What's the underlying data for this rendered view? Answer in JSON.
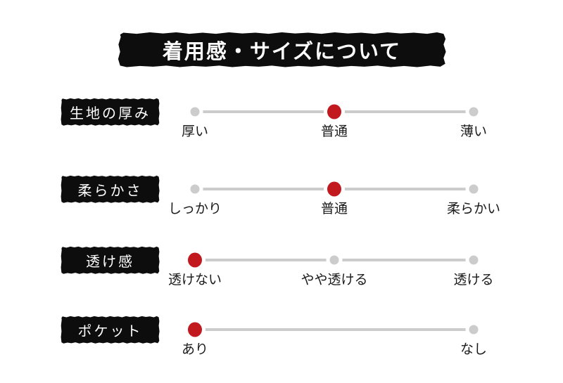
{
  "title": "着用感・サイズについて",
  "colors": {
    "accent_red": "#c2191e",
    "track_gray": "#cccccc",
    "panel_black": "#0d0d0d",
    "option_text": "#1a1a1a",
    "background": "#ffffff"
  },
  "rows": [
    {
      "label": "生地の厚み",
      "options": [
        {
          "label": "厚い",
          "state": "unselected"
        },
        {
          "label": "普通",
          "state": "selected"
        },
        {
          "label": "薄い",
          "state": "unselected"
        }
      ]
    },
    {
      "label": "柔らかさ",
      "options": [
        {
          "label": "しっかり",
          "state": "unselected"
        },
        {
          "label": "普通",
          "state": "selected"
        },
        {
          "label": "柔らかい",
          "state": "unselected"
        }
      ]
    },
    {
      "label": "透け感",
      "options": [
        {
          "label": "透けない",
          "state": "selected"
        },
        {
          "label": "やや透ける",
          "state": "unselected"
        },
        {
          "label": "透ける",
          "state": "unselected"
        }
      ]
    },
    {
      "label": "ポケット",
      "options": [
        {
          "label": "あり",
          "state": "selected"
        },
        {
          "label": "なし",
          "state": "unselected"
        }
      ]
    }
  ]
}
